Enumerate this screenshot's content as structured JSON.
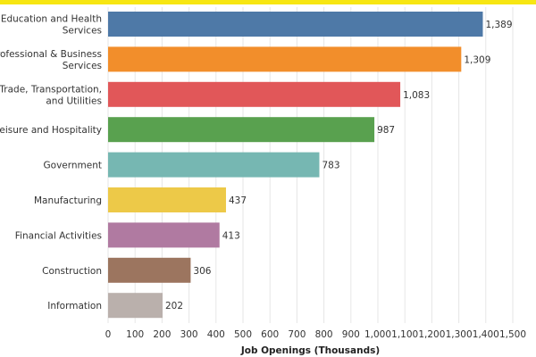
{
  "top_bar_color": "#f7e612",
  "chart_data": {
    "type": "bar",
    "orientation": "horizontal",
    "title": "",
    "xlabel": "Job Openings (Thousands)",
    "ylabel": "",
    "xlim": [
      0,
      1500
    ],
    "x_ticks": [
      0,
      100,
      200,
      300,
      400,
      500,
      600,
      700,
      800,
      900,
      1000,
      1100,
      1200,
      1300,
      1400,
      1500
    ],
    "x_tick_labels": [
      "0",
      "100",
      "200",
      "300",
      "400",
      "500",
      "600",
      "700",
      "800",
      "900",
      "1,000",
      "1,100",
      "1,200",
      "1,300",
      "1,400",
      "1,500"
    ],
    "grid": "vertical",
    "categories": [
      [
        "Education and Health",
        "Services"
      ],
      [
        "Professional & Business",
        "Services"
      ],
      [
        "Trade, Transportation,",
        "and Utilities"
      ],
      [
        "Leisure and Hospitality"
      ],
      [
        "Government"
      ],
      [
        "Manufacturing"
      ],
      [
        "Financial Activities"
      ],
      [
        "Construction"
      ],
      [
        "Information"
      ]
    ],
    "values": [
      1389,
      1309,
      1083,
      987,
      783,
      437,
      413,
      306,
      202
    ],
    "value_labels": [
      "1,389",
      "1,309",
      "1,083",
      "987",
      "783",
      "437",
      "413",
      "306",
      "202"
    ],
    "colors": [
      "#4e79a7",
      "#f28e2b",
      "#e15759",
      "#59a14f",
      "#76b7b2",
      "#edc948",
      "#b07aa1",
      "#9c755f",
      "#bab0ac"
    ]
  }
}
